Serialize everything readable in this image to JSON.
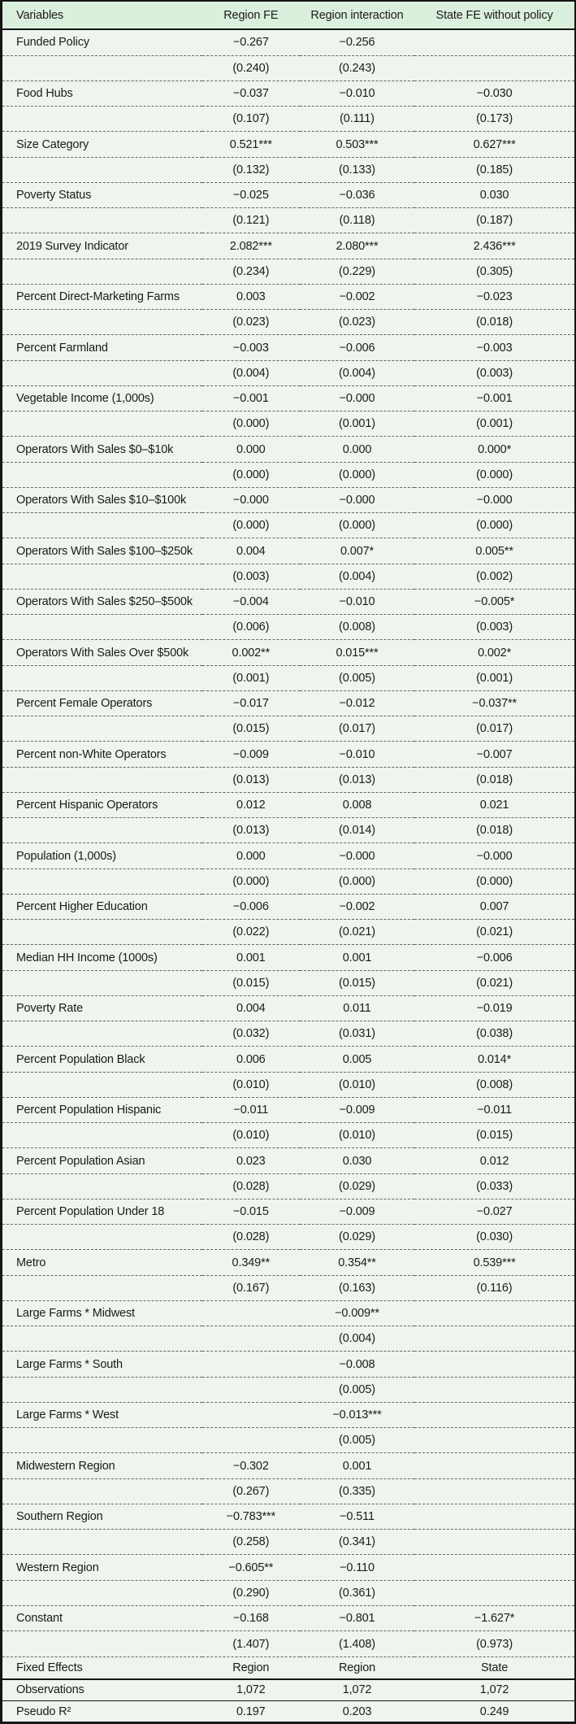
{
  "colors": {
    "header_bg": "#dbf0dc",
    "body_bg": "#edf5ee",
    "border": "#151515",
    "dashed": "#5f6a5f",
    "text": "#1b1b1b"
  },
  "table": {
    "columns": [
      "Variables",
      "Region FE",
      "Region interaction",
      "State FE without policy"
    ],
    "rows": [
      {
        "label": "Funded Policy",
        "coef": [
          "−0.267",
          "−0.256",
          ""
        ],
        "se": [
          "(0.240)",
          "(0.243)",
          ""
        ]
      },
      {
        "label": "Food Hubs",
        "coef": [
          "−0.037",
          "−0.010",
          "−0.030"
        ],
        "se": [
          "(0.107)",
          "(0.111)",
          "(0.173)"
        ]
      },
      {
        "label": "Size Category",
        "coef": [
          "0.521***",
          "0.503***",
          "0.627***"
        ],
        "se": [
          "(0.132)",
          "(0.133)",
          "(0.185)"
        ]
      },
      {
        "label": "Poverty Status",
        "coef": [
          "−0.025",
          "−0.036",
          "0.030"
        ],
        "se": [
          "(0.121)",
          "(0.118)",
          "(0.187)"
        ]
      },
      {
        "label": "2019 Survey Indicator",
        "coef": [
          "2.082***",
          "2.080***",
          "2.436***"
        ],
        "se": [
          "(0.234)",
          "(0.229)",
          "(0.305)"
        ]
      },
      {
        "label": "Percent Direct-Marketing Farms",
        "coef": [
          "0.003",
          "−0.002",
          "−0.023"
        ],
        "se": [
          "(0.023)",
          "(0.023)",
          "(0.018)"
        ]
      },
      {
        "label": "Percent Farmland",
        "coef": [
          "−0.003",
          "−0.006",
          "−0.003"
        ],
        "se": [
          "(0.004)",
          "(0.004)",
          "(0.003)"
        ]
      },
      {
        "label": "Vegetable Income (1,000s)",
        "coef": [
          "−0.001",
          "−0.000",
          "−0.001"
        ],
        "se": [
          "(0.000)",
          "(0.001)",
          "(0.001)"
        ]
      },
      {
        "label": "Operators With Sales $0–$10k",
        "coef": [
          "0.000",
          "0.000",
          "0.000*"
        ],
        "se": [
          "(0.000)",
          "(0.000)",
          "(0.000)"
        ]
      },
      {
        "label": "Operators With Sales $10–$100k",
        "coef": [
          "−0.000",
          "−0.000",
          "−0.000"
        ],
        "se": [
          "(0.000)",
          "(0.000)",
          "(0.000)"
        ]
      },
      {
        "label": "Operators With Sales $100–$250k",
        "coef": [
          "0.004",
          "0.007*",
          "0.005**"
        ],
        "se": [
          "(0.003)",
          "(0.004)",
          "(0.002)"
        ]
      },
      {
        "label": "Operators With Sales $250–$500k",
        "coef": [
          "−0.004",
          "−0.010",
          "−0.005*"
        ],
        "se": [
          "(0.006)",
          "(0.008)",
          "(0.003)"
        ]
      },
      {
        "label": "Operators With Sales Over $500k",
        "coef": [
          "0.002**",
          "0.015***",
          "0.002*"
        ],
        "se": [
          "(0.001)",
          "(0.005)",
          "(0.001)"
        ]
      },
      {
        "label": "Percent Female Operators",
        "coef": [
          "−0.017",
          "−0.012",
          "−0.037**"
        ],
        "se": [
          "(0.015)",
          "(0.017)",
          "(0.017)"
        ]
      },
      {
        "label": "Percent non-White Operators",
        "coef": [
          "−0.009",
          "−0.010",
          "−0.007"
        ],
        "se": [
          "(0.013)",
          "(0.013)",
          "(0.018)"
        ]
      },
      {
        "label": "Percent Hispanic Operators",
        "coef": [
          "0.012",
          "0.008",
          "0.021"
        ],
        "se": [
          "(0.013)",
          "(0.014)",
          "(0.018)"
        ]
      },
      {
        "label": "Population (1,000s)",
        "coef": [
          "0.000",
          "−0.000",
          "−0.000"
        ],
        "se": [
          "(0.000)",
          "(0.000)",
          "(0.000)"
        ]
      },
      {
        "label": "Percent Higher Education",
        "coef": [
          "−0.006",
          "−0.002",
          "0.007"
        ],
        "se": [
          "(0.022)",
          "(0.021)",
          "(0.021)"
        ]
      },
      {
        "label": "Median HH Income (1000s)",
        "coef": [
          "0.001",
          "0.001",
          "−0.006"
        ],
        "se": [
          "(0.015)",
          "(0.015)",
          "(0.021)"
        ]
      },
      {
        "label": "Poverty Rate",
        "coef": [
          "0.004",
          "0.011",
          "−0.019"
        ],
        "se": [
          "(0.032)",
          "(0.031)",
          "(0.038)"
        ]
      },
      {
        "label": "Percent Population Black",
        "coef": [
          "0.006",
          "0.005",
          "0.014*"
        ],
        "se": [
          "(0.010)",
          "(0.010)",
          "(0.008)"
        ]
      },
      {
        "label": "Percent Population Hispanic",
        "coef": [
          "−0.011",
          "−0.009",
          "−0.011"
        ],
        "se": [
          "(0.010)",
          "(0.010)",
          "(0.015)"
        ]
      },
      {
        "label": "Percent Population Asian",
        "coef": [
          "0.023",
          "0.030",
          "0.012"
        ],
        "se": [
          "(0.028)",
          "(0.029)",
          "(0.033)"
        ]
      },
      {
        "label": "Percent Population Under 18",
        "coef": [
          "−0.015",
          "−0.009",
          "−0.027"
        ],
        "se": [
          "(0.028)",
          "(0.029)",
          "(0.030)"
        ]
      },
      {
        "label": "Metro",
        "coef": [
          "0.349**",
          "0.354**",
          "0.539***"
        ],
        "se": [
          "(0.167)",
          "(0.163)",
          "(0.116)"
        ]
      },
      {
        "label": "Large Farms * Midwest",
        "coef": [
          "",
          "−0.009**",
          ""
        ],
        "se": [
          "",
          "(0.004)",
          ""
        ]
      },
      {
        "label": "Large Farms * South",
        "coef": [
          "",
          "−0.008",
          ""
        ],
        "se": [
          "",
          "(0.005)",
          ""
        ]
      },
      {
        "label": "Large Farms * West",
        "coef": [
          "",
          "−0.013***",
          ""
        ],
        "se": [
          "",
          "(0.005)",
          ""
        ]
      },
      {
        "label": "Midwestern Region",
        "coef": [
          "−0.302",
          "0.001",
          ""
        ],
        "se": [
          "(0.267)",
          "(0.335)",
          ""
        ]
      },
      {
        "label": "Southern Region",
        "coef": [
          "−0.783***",
          "−0.511",
          ""
        ],
        "se": [
          "(0.258)",
          "(0.341)",
          ""
        ]
      },
      {
        "label": "Western Region",
        "coef": [
          "−0.605**",
          "−0.110",
          ""
        ],
        "se": [
          "(0.290)",
          "(0.361)",
          ""
        ]
      },
      {
        "label": "Constant",
        "coef": [
          "−0.168",
          "−0.801",
          "−1.627*"
        ],
        "se": [
          "(1.407)",
          "(1.408)",
          "(0.973)"
        ]
      }
    ],
    "footer": [
      {
        "label": "Fixed Effects",
        "values": [
          "Region",
          "Region",
          "State"
        ]
      },
      {
        "label": "Observations",
        "values": [
          "1,072",
          "1,072",
          "1,072"
        ]
      },
      {
        "label": "Pseudo R²",
        "values": [
          "0.197",
          "0.203",
          "0.249"
        ]
      }
    ]
  }
}
